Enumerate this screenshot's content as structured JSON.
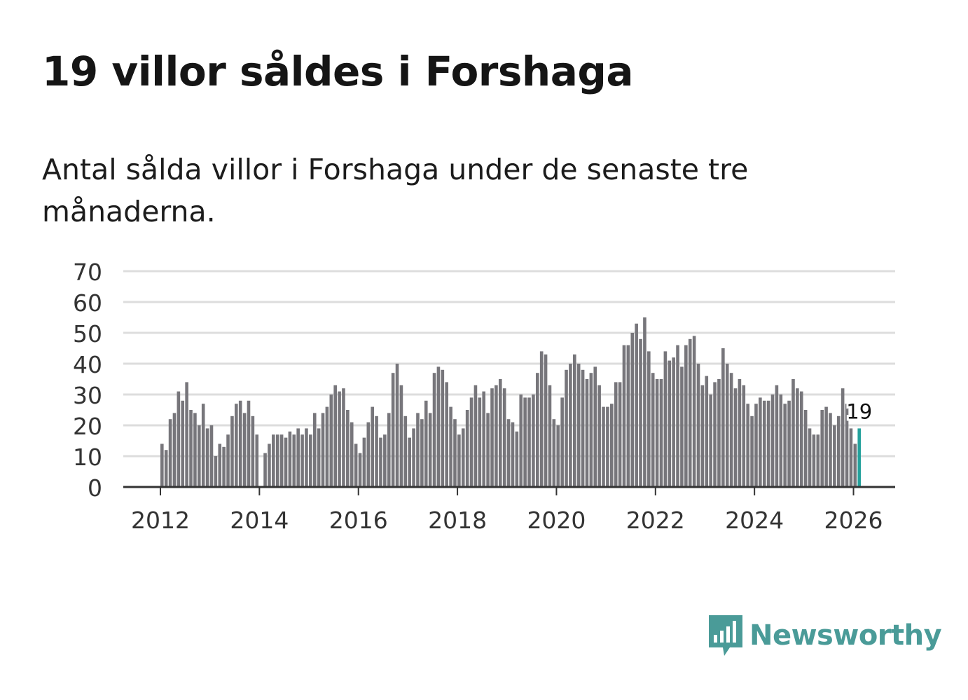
{
  "title": "19 villor såldes i Forshaga",
  "subtitle": "Antal sålda villor i Forshaga under de senaste tre månaderna.",
  "brand": {
    "name": "Newsworthy",
    "logo_icon": "newsworthy-bar-chart-icon"
  },
  "colors": {
    "bar": "#77767b",
    "highlight": "#24a19c",
    "grid": "#dddddd",
    "axis": "#333333",
    "brand": "#4a9b98"
  },
  "chart_data": {
    "type": "bar",
    "x_start": "2012-01",
    "ylim": [
      0,
      70
    ],
    "yticks": [
      "0",
      "10",
      "20",
      "30",
      "40",
      "50",
      "60",
      "70"
    ],
    "xticks": [
      "2012",
      "2014",
      "2016",
      "2018",
      "2020",
      "2022",
      "2024",
      "2026"
    ],
    "grid": true,
    "values": [
      14,
      12,
      22,
      24,
      31,
      28,
      34,
      25,
      24,
      20,
      27,
      19,
      20,
      10,
      14,
      13,
      17,
      23,
      27,
      28,
      24,
      28,
      23,
      17,
      null,
      11,
      14,
      17,
      17,
      17,
      16,
      18,
      17,
      19,
      17,
      19,
      17,
      24,
      19,
      24,
      26,
      30,
      33,
      31,
      32,
      25,
      21,
      14,
      11,
      16,
      21,
      26,
      23,
      16,
      17,
      24,
      37,
      40,
      33,
      23,
      16,
      19,
      24,
      22,
      28,
      24,
      37,
      39,
      38,
      34,
      26,
      22,
      17,
      19,
      25,
      29,
      33,
      29,
      31,
      24,
      32,
      33,
      35,
      32,
      22,
      21,
      18,
      30,
      29,
      29,
      30,
      37,
      44,
      43,
      33,
      22,
      20,
      29,
      38,
      40,
      43,
      40,
      38,
      35,
      37,
      39,
      33,
      26,
      26,
      27,
      34,
      34,
      46,
      46,
      50,
      53,
      48,
      55,
      44,
      37,
      35,
      35,
      44,
      41,
      42,
      46,
      39,
      46,
      48,
      49,
      40,
      33,
      36,
      30,
      34,
      35,
      45,
      40,
      37,
      32,
      35,
      33,
      27,
      23,
      27,
      29,
      28,
      28,
      30,
      33,
      30,
      27,
      28,
      35,
      32,
      31,
      25,
      19,
      17,
      17,
      25,
      26,
      24,
      20,
      23,
      32,
      27,
      19,
      14,
      19
    ],
    "highlight_label": "19"
  }
}
